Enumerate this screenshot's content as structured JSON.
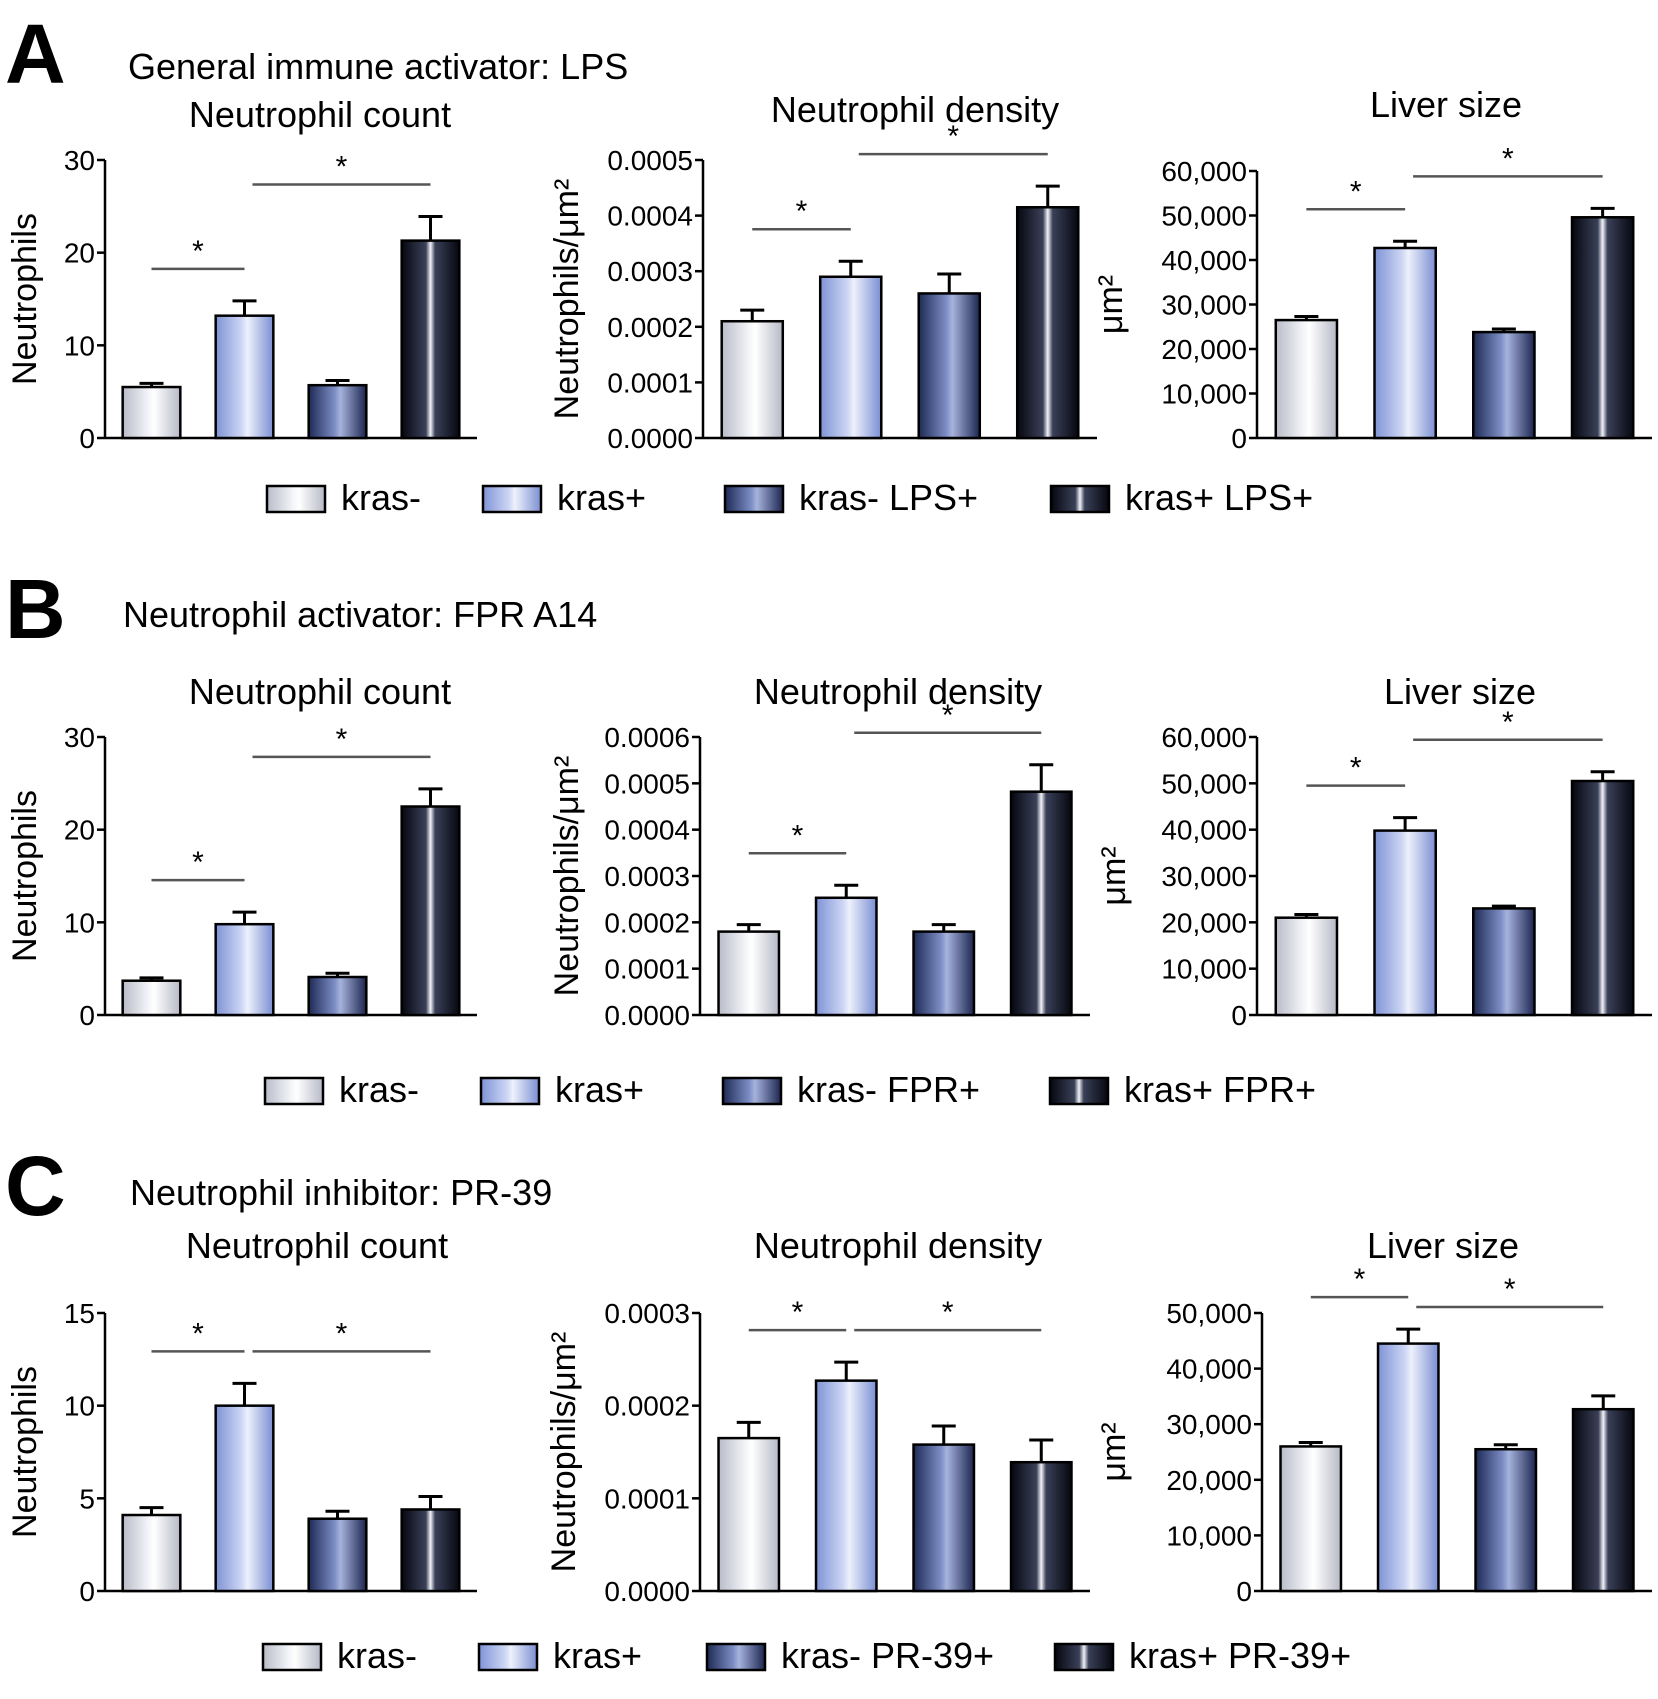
{
  "panels": [
    {
      "letter": "A",
      "title": "General immune activator: LPS",
      "legend": [
        "kras-",
        "kras+",
        "kras- LPS+",
        "kras+ LPS+"
      ]
    },
    {
      "letter": "B",
      "title": "Neutrophil activator: FPR A14",
      "legend": [
        "kras-",
        "kras+",
        "kras- FPR+",
        "kras+ FPR+"
      ]
    },
    {
      "letter": "C",
      "title": "Neutrophil inhibitor: PR-39",
      "legend": [
        "kras-",
        "kras+",
        "kras- PR-39+",
        "kras+ PR-39+"
      ]
    }
  ],
  "chart_data": [
    {
      "type": "bar",
      "panel": "A",
      "title": "Neutrophil count",
      "ylabel": "Neutrophils",
      "ylim": [
        0,
        30
      ],
      "yticks": [
        "0",
        "10",
        "20",
        "30"
      ],
      "tick_values": [
        0,
        10,
        20,
        30
      ],
      "values": [
        5.5,
        13.2,
        5.7,
        21.3
      ],
      "errors": [
        0.4,
        1.6,
        0.5,
        2.6
      ],
      "significance": [
        {
          "from": 0,
          "to": 1,
          "label": "*"
        },
        {
          "from": 1,
          "to": 3,
          "label": "*"
        }
      ]
    },
    {
      "type": "bar",
      "panel": "A",
      "title": "Neutrophil density",
      "ylabel": "Neutrophils/μm²",
      "ylim": [
        0,
        0.0005
      ],
      "yticks": [
        "0.0000",
        "0.0001",
        "0.0002",
        "0.0003",
        "0.0004",
        "0.0005"
      ],
      "tick_values": [
        0,
        0.0001,
        0.0002,
        0.0003,
        0.0004,
        0.0005
      ],
      "values": [
        0.00021,
        0.00029,
        0.00026,
        0.000415
      ],
      "errors": [
        2e-05,
        2.8e-05,
        3.5e-05,
        3.8e-05
      ],
      "significance": [
        {
          "from": 0,
          "to": 1,
          "label": "*"
        },
        {
          "from": 1,
          "to": 3,
          "label": "*"
        }
      ]
    },
    {
      "type": "bar",
      "panel": "A",
      "title": "Liver size",
      "ylabel": "μm²",
      "ylim": [
        0,
        60000
      ],
      "yticks": [
        "0",
        "10,000",
        "20,000",
        "30,000",
        "40,000",
        "50,000",
        "60,000"
      ],
      "tick_values": [
        0,
        10000,
        20000,
        30000,
        40000,
        50000,
        60000
      ],
      "values": [
        26500,
        42700,
        23800,
        49600
      ],
      "errors": [
        800,
        1500,
        700,
        2000
      ],
      "significance": [
        {
          "from": 0,
          "to": 1,
          "label": "*"
        },
        {
          "from": 1,
          "to": 3,
          "label": "*"
        }
      ]
    },
    {
      "type": "bar",
      "panel": "B",
      "title": "Neutrophil count",
      "ylabel": "Neutrophils",
      "ylim": [
        0,
        30
      ],
      "yticks": [
        "0",
        "10",
        "20",
        "30"
      ],
      "tick_values": [
        0,
        10,
        20,
        30
      ],
      "values": [
        3.7,
        9.8,
        4.1,
        22.5
      ],
      "errors": [
        0.3,
        1.3,
        0.4,
        1.9
      ],
      "significance": [
        {
          "from": 0,
          "to": 1,
          "label": "*"
        },
        {
          "from": 1,
          "to": 3,
          "label": "*"
        }
      ]
    },
    {
      "type": "bar",
      "panel": "B",
      "title": "Neutrophil density",
      "ylabel": "Neutrophils/μm²",
      "ylim": [
        0,
        0.0006
      ],
      "yticks": [
        "0.0000",
        "0.0001",
        "0.0002",
        "0.0003",
        "0.0004",
        "0.0005",
        "0.0006"
      ],
      "tick_values": [
        0,
        0.0001,
        0.0002,
        0.0003,
        0.0004,
        0.0005,
        0.0006
      ],
      "values": [
        0.00018,
        0.000253,
        0.00018,
        0.000482
      ],
      "errors": [
        1.5e-05,
        2.7e-05,
        1.5e-05,
        5.8e-05
      ],
      "significance": [
        {
          "from": 0,
          "to": 1,
          "label": "*"
        },
        {
          "from": 1,
          "to": 3,
          "label": "*"
        }
      ]
    },
    {
      "type": "bar",
      "panel": "B",
      "title": "Liver size",
      "ylabel": "μm²",
      "ylim": [
        0,
        60000
      ],
      "yticks": [
        "0",
        "10,000",
        "20,000",
        "30,000",
        "40,000",
        "50,000",
        "60,000"
      ],
      "tick_values": [
        0,
        10000,
        20000,
        30000,
        40000,
        50000,
        60000
      ],
      "values": [
        21000,
        39800,
        23000,
        50500
      ],
      "errors": [
        700,
        2800,
        500,
        2000
      ],
      "significance": [
        {
          "from": 0,
          "to": 1,
          "label": "*"
        },
        {
          "from": 1,
          "to": 3,
          "label": "*"
        }
      ]
    },
    {
      "type": "bar",
      "panel": "C",
      "title": "Neutrophil count",
      "ylabel": "Neutrophils",
      "ylim": [
        0,
        15
      ],
      "yticks": [
        "0",
        "5",
        "10",
        "15"
      ],
      "tick_values": [
        0,
        5,
        10,
        15
      ],
      "values": [
        4.1,
        10.0,
        3.9,
        4.4
      ],
      "errors": [
        0.4,
        1.2,
        0.4,
        0.7
      ],
      "significance": [
        {
          "from": 0,
          "to": 1,
          "label": "*"
        },
        {
          "from": 1,
          "to": 3,
          "label": "*"
        }
      ]
    },
    {
      "type": "bar",
      "panel": "C",
      "title": "Neutrophil density",
      "ylabel": "Neutrophils/μm²",
      "ylim": [
        0,
        0.0003
      ],
      "yticks": [
        "0.0000",
        "0.0001",
        "0.0002",
        "0.0003"
      ],
      "tick_values": [
        0,
        0.0001,
        0.0002,
        0.0003
      ],
      "values": [
        0.000165,
        0.000227,
        0.000158,
        0.000139
      ],
      "errors": [
        1.7e-05,
        2e-05,
        2e-05,
        2.4e-05
      ],
      "significance": [
        {
          "from": 0,
          "to": 1,
          "label": "*"
        },
        {
          "from": 1,
          "to": 3,
          "label": "*"
        }
      ]
    },
    {
      "type": "bar",
      "panel": "C",
      "title": "Liver size",
      "ylabel": "μm²",
      "ylim": [
        0,
        50000
      ],
      "yticks": [
        "0",
        "10,000",
        "20,000",
        "30,000",
        "40,000",
        "50,000"
      ],
      "tick_values": [
        0,
        10000,
        20000,
        30000,
        40000,
        50000
      ],
      "values": [
        26000,
        44500,
        25500,
        32700
      ],
      "errors": [
        700,
        2600,
        800,
        2400
      ],
      "significance": [
        {
          "from": 0,
          "to": 1,
          "label": "*"
        },
        {
          "from": 1,
          "to": 3,
          "label": "*"
        }
      ]
    }
  ]
}
